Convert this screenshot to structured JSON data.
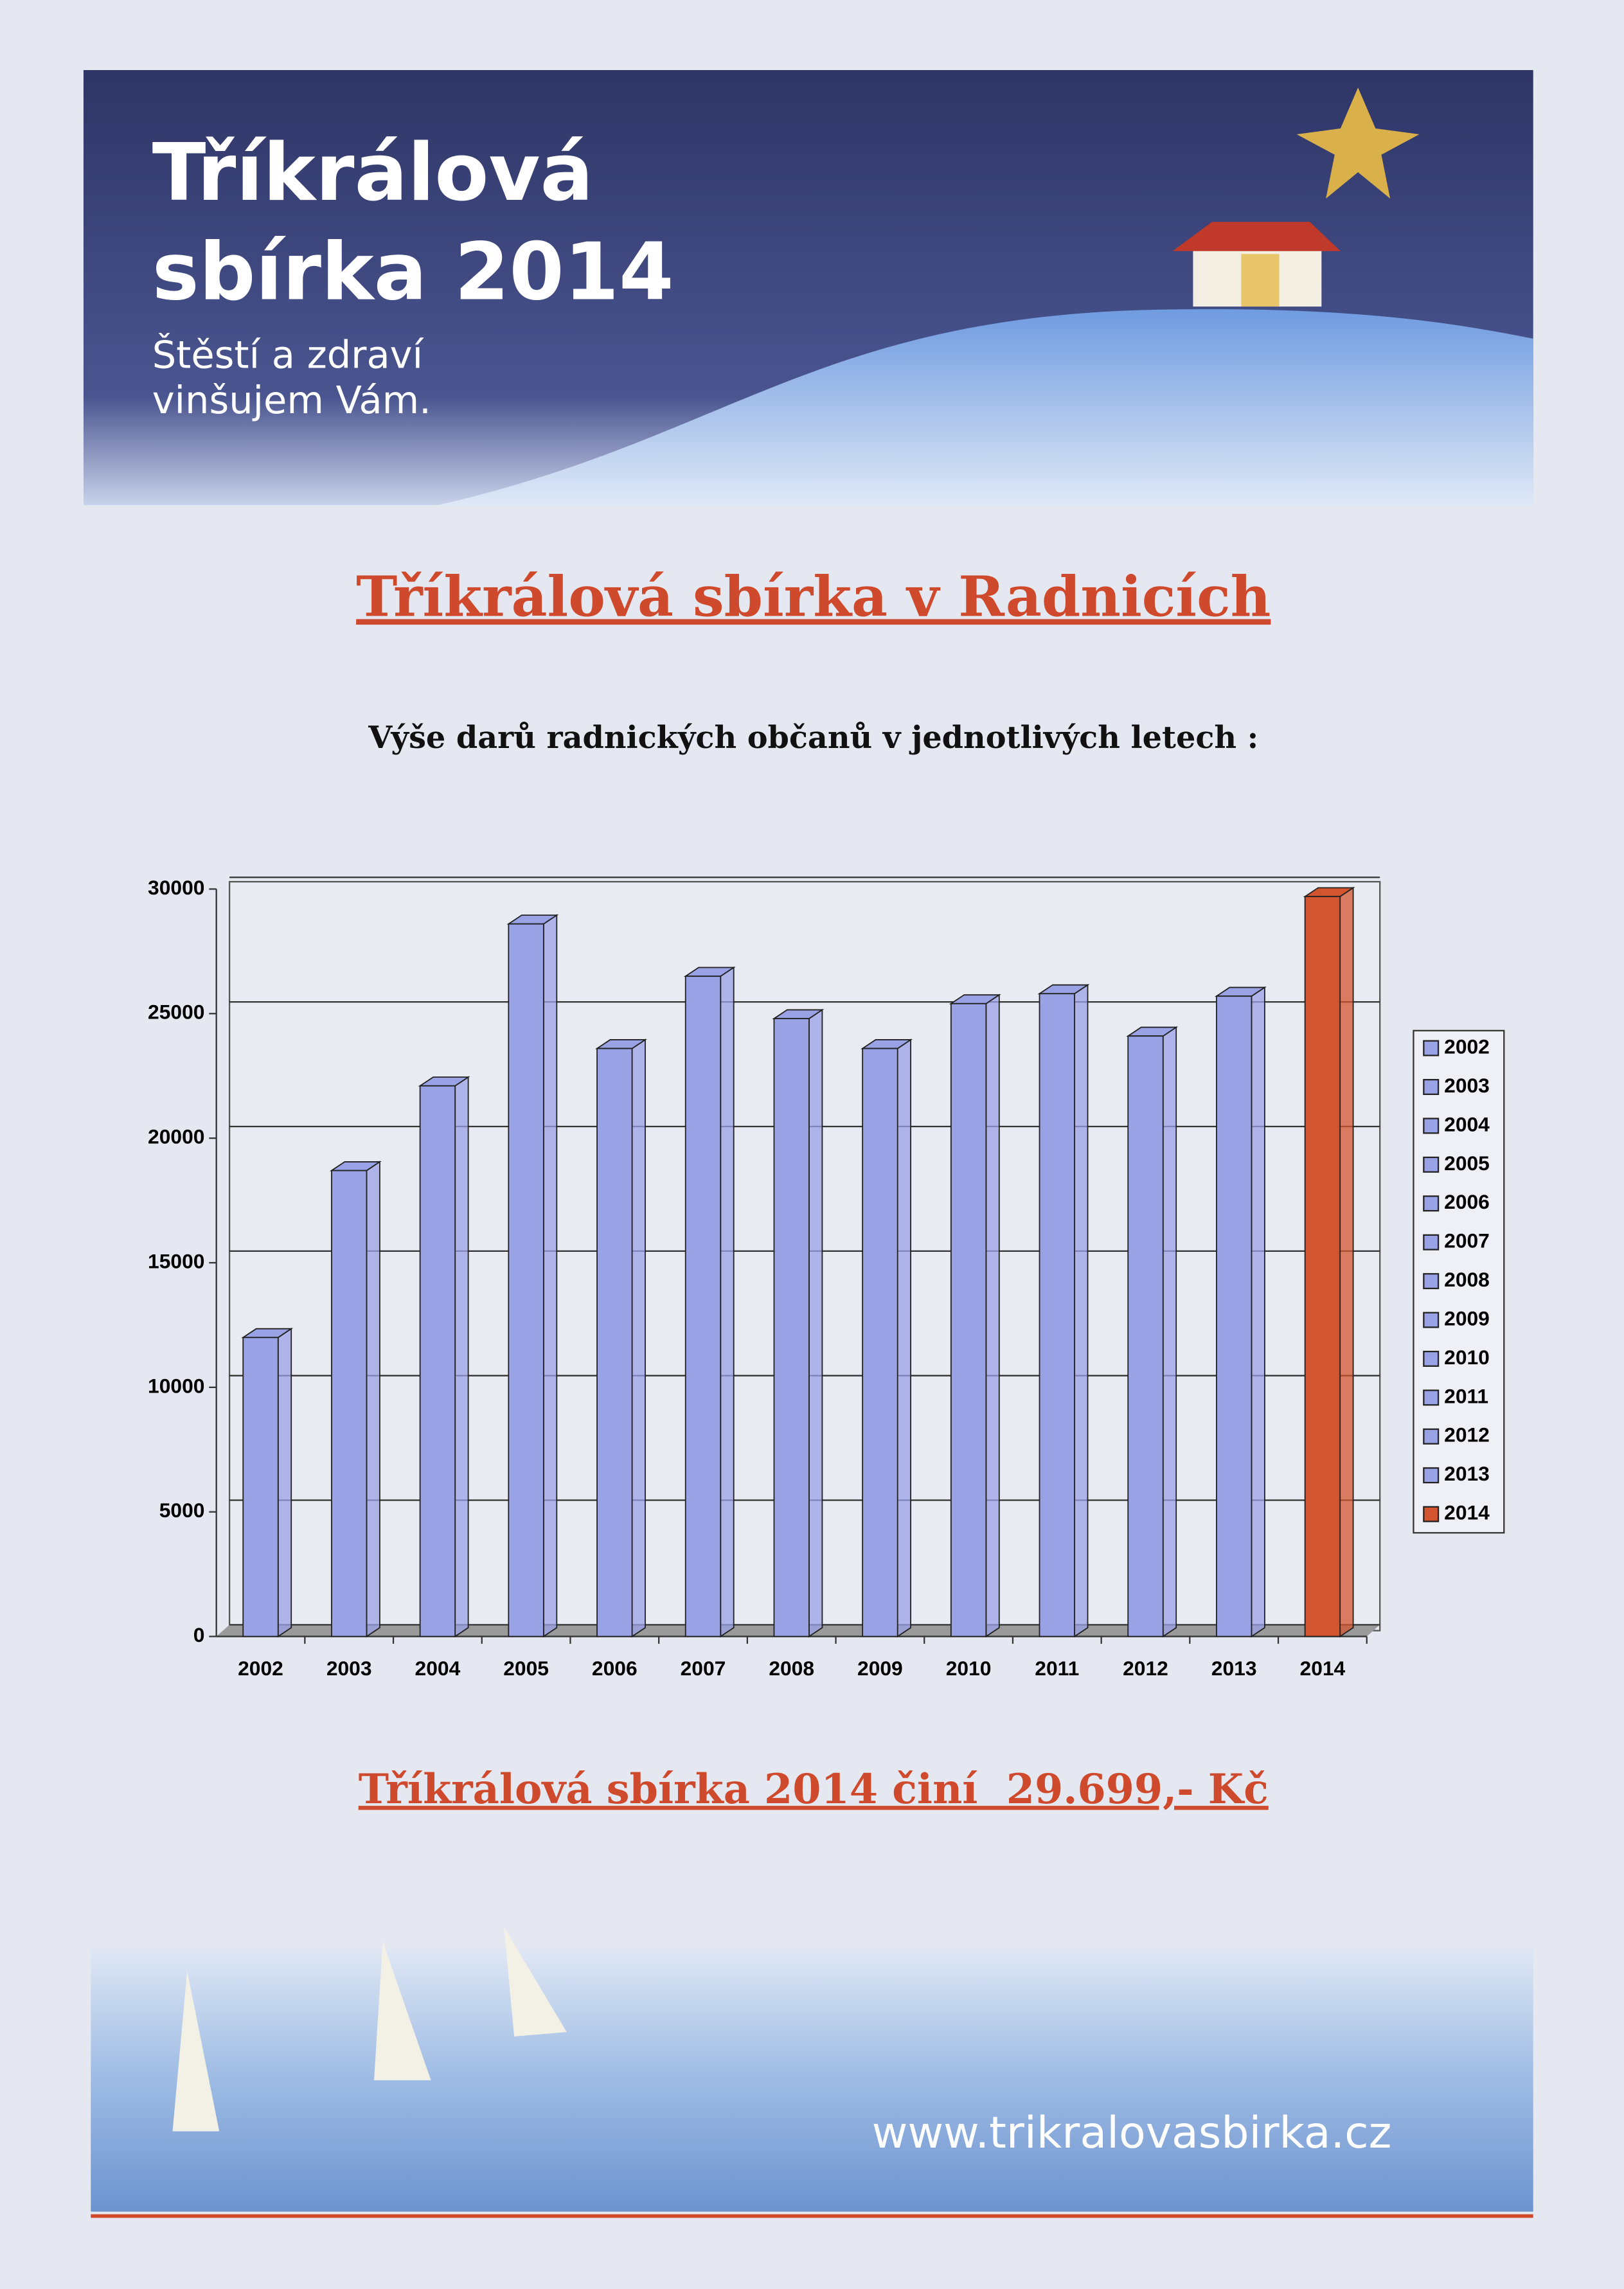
{
  "header": {
    "title_lines": [
      "Tříkrálová",
      "sbírka 2014"
    ],
    "tagline_lines": [
      "Štěstí a zdraví",
      "vinšujem Vám."
    ]
  },
  "title": "Tříkrálová sbírka v Radnicích",
  "subtitle": "Výše darů radnických občanů v jednotlivých letech :",
  "chart_data": {
    "type": "bar",
    "categories": [
      "2002",
      "2003",
      "2004",
      "2005",
      "2006",
      "2007",
      "2008",
      "2009",
      "2010",
      "2011",
      "2012",
      "2013",
      "2014"
    ],
    "values": [
      12000,
      18700,
      22100,
      28600,
      23600,
      26500,
      24800,
      23600,
      25400,
      25800,
      24100,
      25700,
      29699
    ],
    "colors": [
      "#9aa2e6",
      "#9aa2e6",
      "#9aa2e6",
      "#9aa2e6",
      "#9aa2e6",
      "#9aa2e6",
      "#9aa2e6",
      "#9aa2e6",
      "#9aa2e6",
      "#9aa2e6",
      "#9aa2e6",
      "#9aa2e6",
      "#d2552f"
    ],
    "ylim": [
      0,
      30000
    ],
    "yticks": [
      0,
      5000,
      10000,
      15000,
      20000,
      25000,
      30000
    ],
    "grid": true,
    "legend": "right"
  },
  "summary": "Tříkrálová sbírka 2014 činí  29.699,- Kč",
  "footer": {
    "website": "www.trikralovasbirka.cz"
  }
}
